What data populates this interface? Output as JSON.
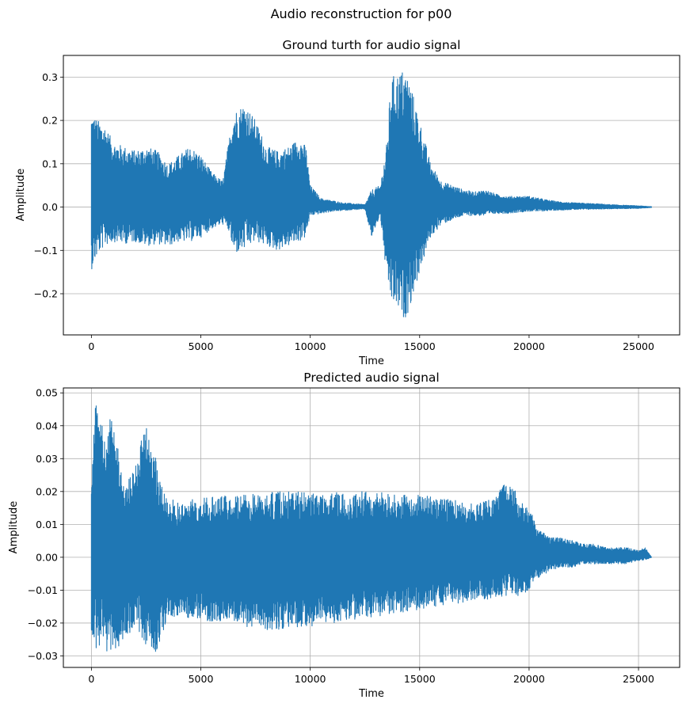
{
  "figure": {
    "suptitle": "Audio reconstruction for p00"
  },
  "chart_data": [
    {
      "type": "line",
      "title": "Ground turth for audio signal",
      "xlabel": "Time",
      "ylabel": "Amplitude",
      "xlim": [
        -1280,
        26880
      ],
      "ylim": [
        -0.295,
        0.35
      ],
      "xticks": [
        0,
        5000,
        10000,
        15000,
        20000,
        25000
      ],
      "xtick_labels": [
        "0",
        "5000",
        "10000",
        "15000",
        "20000",
        "25000"
      ],
      "yticks": [
        -0.2,
        -0.1,
        0.0,
        0.1,
        0.2,
        0.3
      ],
      "ytick_labels": [
        "−0.2",
        "−0.1",
        "0.0",
        "0.1",
        "0.2",
        "0.3"
      ],
      "grid": "y",
      "color": "#1f77b4",
      "series": [
        {
          "x": [
            0,
            300,
            600,
            1000,
            1500,
            2000,
            2500,
            3000,
            3500,
            4000,
            4500,
            5000,
            5500,
            6000,
            6300,
            6500,
            7000,
            7500,
            8000,
            8500,
            9000,
            9500,
            9800,
            10000,
            10500,
            11000,
            11500,
            12000,
            12500,
            12800,
            13200,
            13500,
            13700,
            14000,
            14300,
            14500,
            15000,
            15500,
            16000,
            16500,
            17000,
            17500,
            18000,
            18500,
            19000,
            19500,
            20000,
            20500,
            21000,
            21500,
            22000,
            23000,
            24000,
            25000,
            25600
          ],
          "upper": [
            0.22,
            0.2,
            0.19,
            0.15,
            0.14,
            0.13,
            0.14,
            0.13,
            0.1,
            0.12,
            0.14,
            0.12,
            0.08,
            0.06,
            0.16,
            0.22,
            0.24,
            0.2,
            0.14,
            0.13,
            0.14,
            0.16,
            0.14,
            0.05,
            0.02,
            0.015,
            0.01,
            0.008,
            0.006,
            0.04,
            0.05,
            0.15,
            0.3,
            0.31,
            0.32,
            0.3,
            0.2,
            0.1,
            0.06,
            0.05,
            0.04,
            0.035,
            0.04,
            0.03,
            0.025,
            0.025,
            0.025,
            0.02,
            0.015,
            0.012,
            0.01,
            0.008,
            0.005,
            0.003,
            0.001
          ],
          "lower": [
            -0.145,
            -0.11,
            -0.09,
            -0.08,
            -0.085,
            -0.08,
            -0.09,
            -0.085,
            -0.09,
            -0.08,
            -0.08,
            -0.07,
            -0.05,
            -0.04,
            -0.06,
            -0.11,
            -0.1,
            -0.08,
            -0.09,
            -0.1,
            -0.09,
            -0.08,
            -0.07,
            -0.02,
            -0.015,
            -0.01,
            -0.008,
            -0.006,
            -0.005,
            -0.07,
            -0.02,
            -0.17,
            -0.22,
            -0.24,
            -0.26,
            -0.24,
            -0.15,
            -0.07,
            -0.04,
            -0.03,
            -0.02,
            -0.02,
            -0.02,
            -0.015,
            -0.015,
            -0.012,
            -0.01,
            -0.01,
            -0.008,
            -0.007,
            -0.006,
            -0.005,
            -0.004,
            -0.003,
            -0.001
          ]
        }
      ]
    },
    {
      "type": "line",
      "title": "Predicted audio signal",
      "xlabel": "Time",
      "ylabel": "Amplitude",
      "xlim": [
        -1280,
        26880
      ],
      "ylim": [
        -0.0335,
        0.0515
      ],
      "xticks": [
        0,
        5000,
        10000,
        15000,
        20000,
        25000
      ],
      "xtick_labels": [
        "0",
        "5000",
        "10000",
        "15000",
        "20000",
        "25000"
      ],
      "yticks": [
        -0.03,
        -0.02,
        -0.01,
        0.0,
        0.01,
        0.02,
        0.03,
        0.04,
        0.05
      ],
      "ytick_labels": [
        "−0.03",
        "−0.02",
        "−0.01",
        "0.00",
        "0.01",
        "0.02",
        "0.03",
        "0.04",
        "0.05"
      ],
      "grid": "both",
      "color": "#1f77b4",
      "series": [
        {
          "x": [
            0,
            100,
            300,
            500,
            700,
            1000,
            1300,
            1500,
            1800,
            2000,
            2500,
            2800,
            3000,
            3300,
            3500,
            4000,
            5000,
            6000,
            7000,
            8000,
            9000,
            10000,
            11000,
            12000,
            13000,
            14000,
            15000,
            16000,
            17000,
            17500,
            18000,
            18500,
            18800,
            19200,
            19500,
            20000,
            20500,
            21000,
            21500,
            22000,
            22500,
            23000,
            23500,
            24000,
            24500,
            25000,
            25300,
            25600
          ],
          "upper": [
            0.02,
            0.048,
            0.045,
            0.04,
            0.038,
            0.046,
            0.03,
            0.022,
            0.025,
            0.03,
            0.04,
            0.035,
            0.028,
            0.022,
            0.018,
            0.017,
            0.018,
            0.019,
            0.019,
            0.02,
            0.02,
            0.02,
            0.02,
            0.02,
            0.02,
            0.019,
            0.019,
            0.018,
            0.017,
            0.016,
            0.017,
            0.019,
            0.023,
            0.023,
            0.018,
            0.015,
            0.008,
            0.006,
            0.006,
            0.005,
            0.004,
            0.004,
            0.003,
            0.003,
            0.003,
            0.002,
            0.003,
            0.0
          ],
          "lower": [
            -0.024,
            -0.03,
            -0.028,
            -0.027,
            -0.029,
            -0.028,
            -0.027,
            -0.025,
            -0.023,
            -0.02,
            -0.027,
            -0.028,
            -0.029,
            -0.022,
            -0.018,
            -0.018,
            -0.019,
            -0.02,
            -0.021,
            -0.022,
            -0.022,
            -0.021,
            -0.02,
            -0.019,
            -0.018,
            -0.017,
            -0.016,
            -0.015,
            -0.014,
            -0.013,
            -0.013,
            -0.012,
            -0.012,
            -0.011,
            -0.012,
            -0.01,
            -0.006,
            -0.004,
            -0.003,
            -0.003,
            -0.002,
            -0.002,
            -0.002,
            -0.002,
            -0.002,
            -0.001,
            -0.001,
            0.0
          ]
        }
      ]
    }
  ]
}
